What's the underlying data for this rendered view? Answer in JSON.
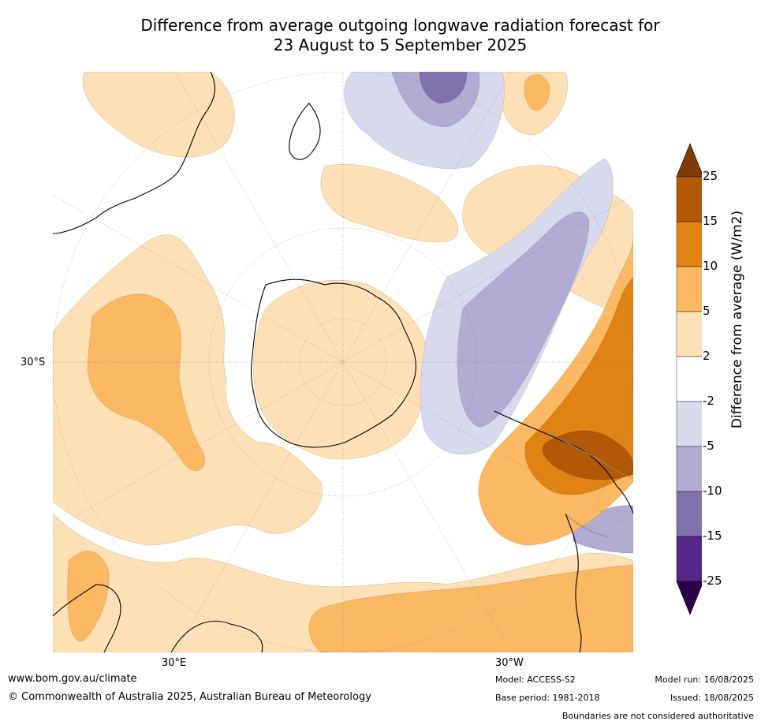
{
  "title": {
    "line1": "Difference from average outgoing longwave radiation forecast for",
    "line2": "23 August to 5 September 2025"
  },
  "map": {
    "projection": "south-polar-stereographic",
    "longitude_labels": [
      "30°E",
      "30°W"
    ],
    "latitude_labels": [
      "30°S"
    ],
    "gridlines": true,
    "colors": {
      "ocean": "#ffffff",
      "coast": "#000000",
      "border": "#8c8c8c",
      "grid": "#777777"
    }
  },
  "colorbar": {
    "label": "Difference from average (W/m2)",
    "ticks": [
      "25",
      "15",
      "10",
      "5",
      "2",
      "-2",
      "-5",
      "-10",
      "-15",
      "-25"
    ],
    "bands": [
      {
        "from": 15,
        "to": 25,
        "color": "#b35806"
      },
      {
        "from": 10,
        "to": 15,
        "color": "#e08214"
      },
      {
        "from": 5,
        "to": 10,
        "color": "#fdb863"
      },
      {
        "from": 2,
        "to": 5,
        "color": "#fee0b6"
      },
      {
        "from": -2,
        "to": 2,
        "color": "#ffffff"
      },
      {
        "from": -5,
        "to": -2,
        "color": "#d8daeb"
      },
      {
        "from": -10,
        "to": -5,
        "color": "#b2abd2"
      },
      {
        "from": -15,
        "to": -10,
        "color": "#8073ac"
      },
      {
        "from": -25,
        "to": -15,
        "color": "#542788"
      }
    ],
    "over_color": "#7f3b08",
    "under_color": "#2d004b"
  },
  "footer": {
    "site": "www.bom.gov.au/climate",
    "copyright": "© Commonwealth of Australia 2025, Australian Bureau of Meteorology",
    "model": "Model: ACCESS-S2",
    "base_period": "Base period: 1981-2018",
    "model_run": "Model run: 16/08/2025",
    "issued": "Issued: 18/08/2025",
    "boundaries_note": "Boundaries are not considered authoritative"
  }
}
